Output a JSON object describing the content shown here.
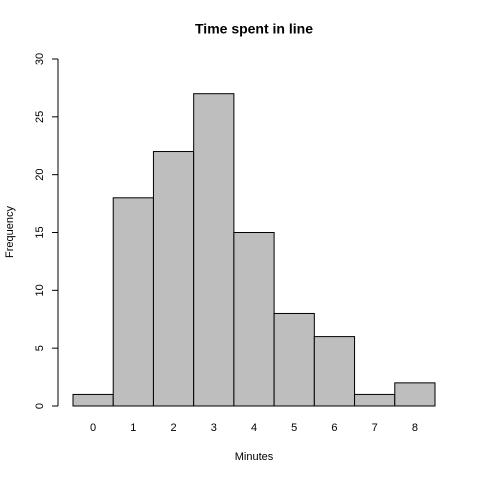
{
  "chart_data": {
    "type": "bar",
    "title": "Time spent in line",
    "x_label": "Minutes",
    "y_label": "Frequency",
    "categories": [
      "0",
      "1",
      "2",
      "3",
      "4",
      "5",
      "6",
      "7",
      "8"
    ],
    "values": [
      1,
      18,
      22,
      27,
      15,
      8,
      6,
      1,
      2
    ],
    "color": "#bebebe",
    "ylim": [
      0,
      30
    ],
    "yticks": [
      0,
      5,
      10,
      15,
      20,
      25,
      30
    ],
    "grid": false
  }
}
